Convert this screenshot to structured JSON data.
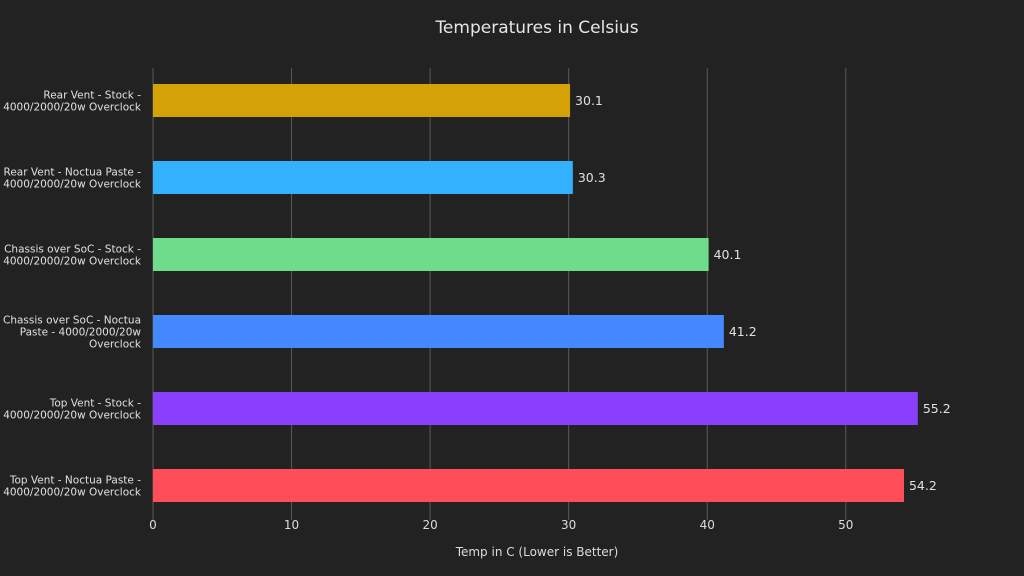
{
  "chart_data": {
    "type": "bar",
    "orientation": "horizontal",
    "title": "Temperatures in Celsius",
    "xlabel": "Temp in C (Lower is Better)",
    "ylabel": "",
    "xlim": [
      0,
      55.5
    ],
    "xticks": [
      0,
      10,
      20,
      30,
      40,
      50
    ],
    "grid": true,
    "categories": [
      [
        "Rear Vent - Stock -",
        "4000/2000/20w Overclock"
      ],
      [
        "Rear Vent - Noctua Paste -",
        "4000/2000/20w Overclock"
      ],
      [
        "Chassis over SoC - Stock -",
        "4000/2000/20w Overclock"
      ],
      [
        "Chassis over SoC - Noctua",
        "Paste - 4000/2000/20w",
        "Overclock"
      ],
      [
        "Top Vent - Stock -",
        "4000/2000/20w Overclock"
      ],
      [
        "Top Vent - Noctua Paste -",
        "4000/2000/20w Overclock"
      ]
    ],
    "values": [
      30.1,
      30.3,
      40.1,
      41.2,
      55.2,
      54.2
    ],
    "value_labels": [
      "30.1",
      "30.3",
      "40.1",
      "41.2",
      "55.2",
      "54.2"
    ],
    "colors": [
      "#D4A106",
      "#33B1FF",
      "#6FDC8C",
      "#4589FF",
      "#8A3FFC",
      "#FF4D59"
    ]
  },
  "theme": {
    "background": "#222222"
  }
}
